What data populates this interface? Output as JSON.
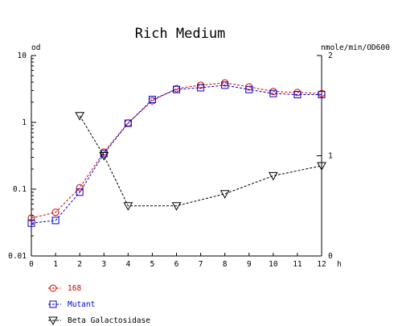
{
  "chart_data": {
    "type": "line",
    "title": "Rich Medium",
    "xlabel": "h",
    "ylabel_left": "od",
    "ylabel_right": "nmole/min/OD600",
    "x_ticks": [
      0,
      1,
      2,
      3,
      4,
      5,
      6,
      7,
      8,
      9,
      10,
      11,
      12
    ],
    "x_range": [
      0,
      12
    ],
    "y_left_scale": "log",
    "y_left_range": [
      0.01,
      10
    ],
    "y_left_ticks": [
      {
        "value": 10,
        "label": "10"
      },
      {
        "value": 1,
        "label": "1"
      },
      {
        "value": 0.1,
        "label": "0.1"
      },
      {
        "value": 0.01,
        "label": "0.01"
      }
    ],
    "y_right_scale": "linear",
    "y_right_range": [
      0,
      2
    ],
    "y_right_ticks": [
      {
        "value": 2,
        "label": "2"
      },
      {
        "value": 1,
        "label": "1"
      },
      {
        "value": 0,
        "label": "0"
      }
    ],
    "grid": false,
    "legend_position": "bottom-left",
    "series": [
      {
        "name": "168",
        "axis": "left",
        "marker": "circle",
        "color": "#d00000",
        "x": [
          0,
          1,
          2,
          3,
          4,
          5,
          6,
          7,
          8,
          9,
          10,
          11,
          12
        ],
        "y": [
          0.037,
          0.045,
          0.105,
          0.36,
          0.98,
          2.1,
          3.2,
          3.6,
          3.9,
          3.4,
          2.9,
          2.8,
          2.7
        ]
      },
      {
        "name": "Mutant",
        "axis": "left",
        "marker": "square",
        "color": "#0000d0",
        "x": [
          0,
          1,
          2,
          3,
          4,
          5,
          6,
          7,
          8,
          9,
          10,
          11,
          12
        ],
        "y": [
          0.031,
          0.034,
          0.09,
          0.34,
          0.97,
          2.2,
          3.1,
          3.3,
          3.6,
          3.1,
          2.7,
          2.6,
          2.6
        ]
      },
      {
        "name": "Beta Galactosidase",
        "axis": "right",
        "marker": "triangle-down",
        "color": "#000000",
        "x": [
          2,
          3,
          4,
          6,
          8,
          10,
          12
        ],
        "y": [
          1.4,
          1.0,
          0.5,
          0.5,
          0.62,
          0.8,
          0.9
        ]
      }
    ]
  }
}
